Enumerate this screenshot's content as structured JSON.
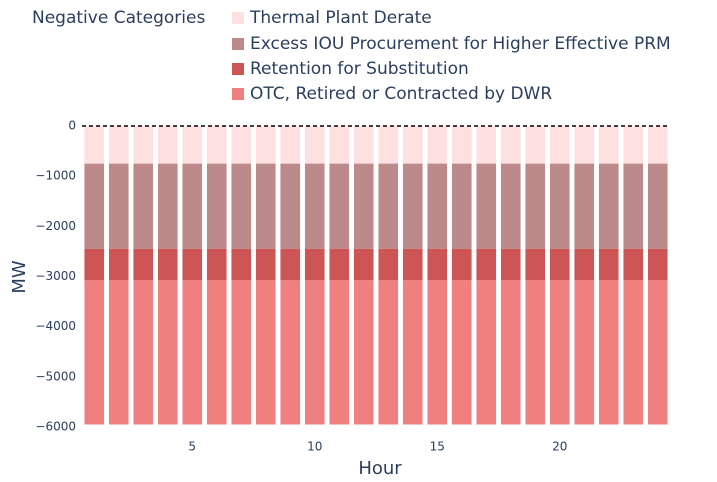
{
  "chart_data": {
    "type": "bar",
    "barmode": "stack",
    "legend_title": "Negative Categories",
    "x": [
      1,
      2,
      3,
      4,
      5,
      6,
      7,
      8,
      9,
      10,
      11,
      12,
      13,
      14,
      15,
      16,
      17,
      18,
      19,
      20,
      21,
      22,
      23,
      24
    ],
    "series": [
      {
        "name": "Thermal Plant Derate",
        "color": "#ffe0e0",
        "values": [
          -750,
          -750,
          -750,
          -750,
          -750,
          -750,
          -750,
          -750,
          -750,
          -750,
          -750,
          -750,
          -750,
          -750,
          -750,
          -750,
          -750,
          -750,
          -750,
          -750,
          -750,
          -750,
          -750,
          -750
        ]
      },
      {
        "name": "Excess IOU Procurement for Higher Effective PRM",
        "color": "#bc8a8a",
        "values": [
          -1700,
          -1700,
          -1700,
          -1700,
          -1700,
          -1700,
          -1700,
          -1700,
          -1700,
          -1700,
          -1700,
          -1700,
          -1700,
          -1700,
          -1700,
          -1700,
          -1700,
          -1700,
          -1700,
          -1700,
          -1700,
          -1700,
          -1700,
          -1700
        ]
      },
      {
        "name": "Retention for Substitution",
        "color": "#cd5555",
        "values": [
          -620,
          -620,
          -620,
          -620,
          -620,
          -620,
          -620,
          -620,
          -620,
          -620,
          -620,
          -620,
          -620,
          -620,
          -620,
          -620,
          -620,
          -620,
          -620,
          -620,
          -620,
          -620,
          -620,
          -620
        ]
      },
      {
        "name": "OTC, Retired or Contracted by DWR",
        "color": "#f08080",
        "values": [
          -2880,
          -2880,
          -2880,
          -2880,
          -2880,
          -2880,
          -2880,
          -2880,
          -2880,
          -2880,
          -2880,
          -2880,
          -2880,
          -2880,
          -2880,
          -2880,
          -2880,
          -2880,
          -2880,
          -2880,
          -2880,
          -2880,
          -2880,
          -2880
        ]
      }
    ],
    "xlabel": "Hour",
    "ylabel": "MW",
    "xlim": [
      0.5,
      24.5
    ],
    "xticks": [
      5,
      10,
      15,
      20
    ],
    "ylim": [
      -6000,
      0
    ],
    "yticks": [
      0,
      {
        "value": -1000,
        "label": "−1000"
      },
      {
        "value": -2000,
        "label": "−2000"
      },
      {
        "value": -3000,
        "label": "−3000"
      },
      {
        "value": -4000,
        "label": "−4000"
      },
      {
        "value": -5000,
        "label": "−5000"
      },
      {
        "value": -6000,
        "label": "−6000"
      }
    ],
    "grid": false,
    "legend": "top"
  }
}
